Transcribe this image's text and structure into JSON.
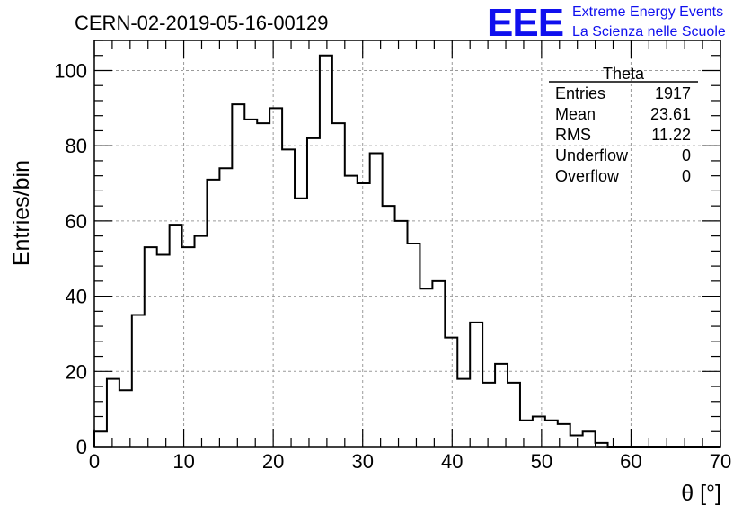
{
  "chart_data": {
    "type": "bar",
    "title": "CERN-02-2019-05-16-00129",
    "xlabel": "θ [°]",
    "ylabel": "Entries/bin",
    "xlim": [
      0,
      70
    ],
    "ylim": [
      0,
      108
    ],
    "bin_width": 1.4,
    "x_ticks": [
      0,
      10,
      20,
      30,
      40,
      50,
      60,
      70
    ],
    "y_ticks": [
      0,
      20,
      40,
      60,
      80,
      100
    ],
    "grid": true,
    "values": [
      4,
      18,
      15,
      35,
      53,
      51,
      59,
      53,
      56,
      71,
      74,
      91,
      87,
      86,
      90,
      79,
      66,
      82,
      104,
      86,
      72,
      70,
      78,
      64,
      60,
      54,
      42,
      44,
      29,
      18,
      33,
      17,
      22,
      17,
      7,
      8,
      7,
      6,
      3,
      4,
      1,
      0,
      0,
      0,
      0,
      0,
      0,
      0,
      0,
      0
    ],
    "stats_box": {
      "title": "Theta",
      "placement": "top-right",
      "rows": [
        {
          "label": "Entries",
          "value": "1917"
        },
        {
          "label": "Mean",
          "value": "23.61"
        },
        {
          "label": "RMS",
          "value": "11.22"
        },
        {
          "label": "Underflow",
          "value": "0"
        },
        {
          "label": "Overflow",
          "value": "0"
        }
      ]
    }
  },
  "logo": {
    "letters": "EEE",
    "line1": "Extreme Energy Events",
    "line2": "La Scienza nelle Scuole",
    "color": "#1010ee"
  }
}
